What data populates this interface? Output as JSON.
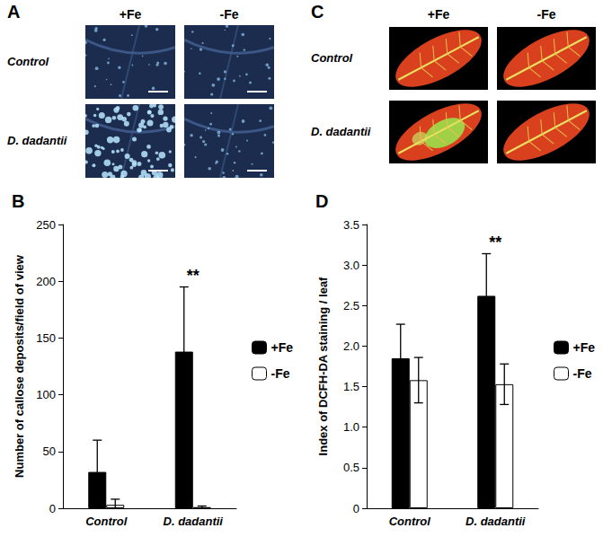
{
  "image_panels": [
    {
      "title": "A",
      "columns": [
        "+Fe",
        "-Fe"
      ],
      "rows": [
        "Control",
        "D. dadantii"
      ]
    },
    {
      "title": "C",
      "columns": [
        "+Fe",
        "-Fe"
      ],
      "rows": [
        "Control",
        "D. dadantii"
      ]
    }
  ],
  "chart_data": [
    {
      "type": "bar",
      "title": "B",
      "ylabel": "Number of callose deposits/field of view",
      "categories": [
        "Control",
        "D. dadantii"
      ],
      "series": [
        {
          "name": "+Fe",
          "color": "#000000",
          "values": [
            32,
            138
          ],
          "errors": [
            28,
            57
          ]
        },
        {
          "name": "-Fe",
          "color": "#ffffff",
          "values": [
            3,
            1
          ],
          "errors": [
            5,
            1
          ]
        }
      ],
      "ylim": [
        0,
        250
      ],
      "yticks": [
        0,
        50,
        100,
        150,
        200,
        250
      ],
      "grid": false,
      "legend": "right",
      "annotations": [
        {
          "text": "**",
          "category": "D. dadantii"
        }
      ]
    },
    {
      "type": "bar",
      "title": "D",
      "ylabel": "Index of DCFH-DA staining / leaf",
      "categories": [
        "Control",
        "D. dadantii"
      ],
      "series": [
        {
          "name": "+Fe",
          "color": "#000000",
          "values": [
            1.85,
            2.62
          ],
          "errors": [
            0.42,
            0.52
          ]
        },
        {
          "name": "-Fe",
          "color": "#ffffff",
          "values": [
            1.58,
            1.53
          ],
          "errors": [
            0.28,
            0.25
          ]
        }
      ],
      "ylim": [
        0,
        3.5
      ],
      "yticks": [
        0,
        0.5,
        {
          "value": 1,
          "label": "1.0"
        },
        1.5,
        {
          "value": 2,
          "label": "2.0"
        },
        2.5,
        {
          "value": 3,
          "label": "3.0"
        },
        3.5
      ],
      "grid": false,
      "legend": "right",
      "annotations": [
        {
          "text": "**",
          "category": "D. dadantii"
        }
      ]
    }
  ]
}
